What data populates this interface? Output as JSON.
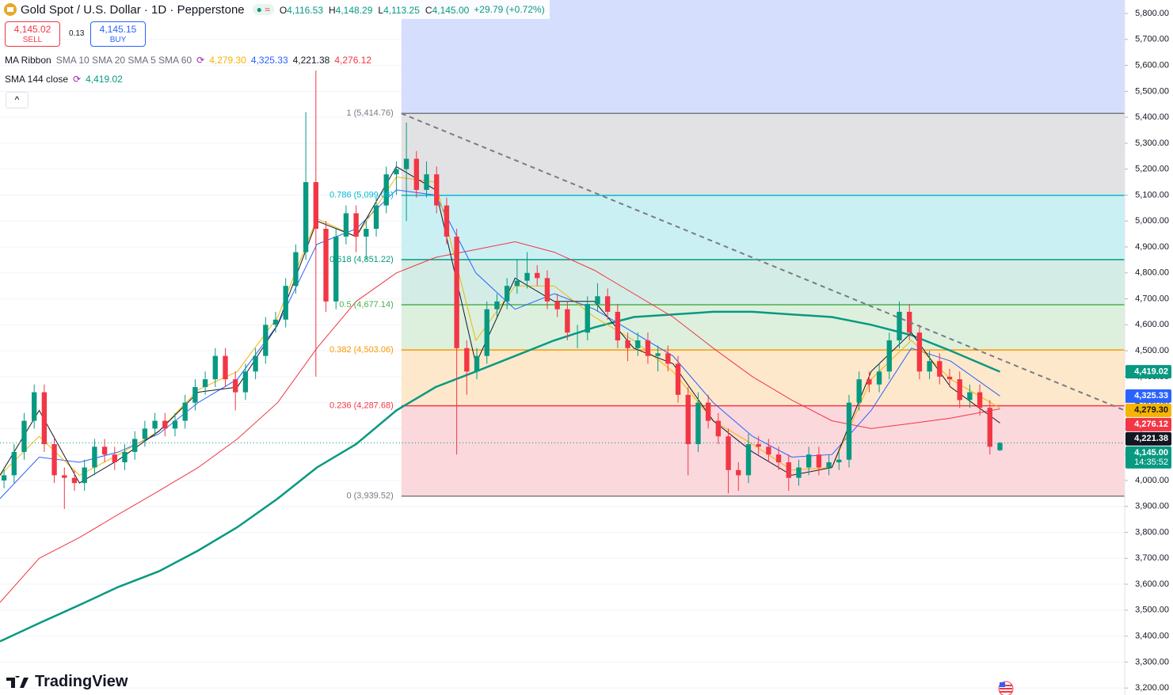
{
  "header": {
    "symbol": "Gold Spot / U.S. Dollar · 1D · Pepperstone",
    "ohlc": [
      {
        "key": "O",
        "value": "4,116.53"
      },
      {
        "key": "H",
        "value": "4,148.29"
      },
      {
        "key": "L",
        "value": "4,113.25"
      },
      {
        "key": "C",
        "value": "4,145.00"
      }
    ],
    "change": "+29.79 (+0.72%)"
  },
  "trade": {
    "sell_price": "4,145.02",
    "sell": "SELL",
    "spread": "0.13",
    "buy_price": "4,145.15",
    "buy": "BUY"
  },
  "indicators": [
    {
      "name": "MA Ribbon",
      "params": "SMA 10 SMA 20 SMA 5 SMA 60"
    },
    {
      "name": "SMA 144 close"
    }
  ],
  "brand": "TradingView",
  "chart_data": {
    "type": "candlestick",
    "xlim": [
      -0.4,
      111.4
    ],
    "ylim": [
      3173,
      5852
    ],
    "yticks": [
      {
        "value": 5800,
        "label": "5,800.00"
      },
      {
        "value": 5700,
        "label": "5,700.00"
      },
      {
        "value": 5600,
        "label": "5,600.00"
      },
      {
        "value": 5500,
        "label": "5,500.00"
      },
      {
        "value": 5400,
        "label": "5,400.00"
      },
      {
        "value": 5300,
        "label": "5,300.00"
      },
      {
        "value": 5200,
        "label": "5,200.00"
      },
      {
        "value": 5100,
        "label": "5,100.00"
      },
      {
        "value": 5000,
        "label": "5,000.00"
      },
      {
        "value": 4900,
        "label": "4,900.00"
      },
      {
        "value": 4800,
        "label": "4,800.00"
      },
      {
        "value": 4700,
        "label": "4,700.00"
      },
      {
        "value": 4600,
        "label": "4,600.00"
      },
      {
        "value": 4500,
        "label": "4,500.00"
      },
      {
        "value": 4400,
        "label": "4,400.00"
      },
      {
        "value": 4300,
        "label": "4,300.00"
      },
      {
        "value": 4200,
        "label": "4,200.00"
      },
      {
        "value": 4100,
        "label": "4,100.00"
      },
      {
        "value": 4000,
        "label": "4,000.00"
      },
      {
        "value": 3900,
        "label": "3,900.00"
      },
      {
        "value": 3800,
        "label": "3,800.00"
      },
      {
        "value": 3700,
        "label": "3,700.00"
      },
      {
        "value": 3600,
        "label": "3,600.00"
      },
      {
        "value": 3500,
        "label": "3,500.00"
      },
      {
        "value": 3400,
        "label": "3,400.00"
      },
      {
        "value": 3300,
        "label": "3,300.00"
      },
      {
        "value": 3200,
        "label": "3,200.00"
      }
    ],
    "grid": true,
    "up_color": "#089981",
    "down_color": "#f23645",
    "candles": [
      [
        4000,
        4050,
        3970,
        4020
      ],
      [
        4020,
        4140,
        3990,
        4110
      ],
      [
        4110,
        4260,
        4080,
        4230
      ],
      [
        4230,
        4370,
        4200,
        4340
      ],
      [
        4340,
        4370,
        4110,
        4140
      ],
      [
        4140,
        4170,
        3990,
        4020
      ],
      [
        4020,
        4050,
        3890,
        4010
      ],
      [
        4010,
        4040,
        3960,
        3990
      ],
      [
        3990,
        4080,
        3960,
        4050
      ],
      [
        4050,
        4160,
        4020,
        4130
      ],
      [
        4130,
        4160,
        4070,
        4100
      ],
      [
        4100,
        4130,
        4040,
        4070
      ],
      [
        4070,
        4140,
        4040,
        4110
      ],
      [
        4110,
        4190,
        4080,
        4160
      ],
      [
        4160,
        4230,
        4130,
        4200
      ],
      [
        4200,
        4260,
        4170,
        4230
      ],
      [
        4230,
        4260,
        4170,
        4200
      ],
      [
        4200,
        4260,
        4170,
        4230
      ],
      [
        4230,
        4330,
        4200,
        4300
      ],
      [
        4300,
        4390,
        4270,
        4360
      ],
      [
        4360,
        4420,
        4330,
        4390
      ],
      [
        4390,
        4510,
        4360,
        4480
      ],
      [
        4480,
        4510,
        4360,
        4390
      ],
      [
        4390,
        4420,
        4270,
        4340
      ],
      [
        4340,
        4450,
        4310,
        4420
      ],
      [
        4420,
        4510,
        4390,
        4480
      ],
      [
        4480,
        4630,
        4450,
        4600
      ],
      [
        4600,
        4650,
        4570,
        4620
      ],
      [
        4620,
        4780,
        4590,
        4750
      ],
      [
        4750,
        4910,
        4720,
        4880
      ],
      [
        4880,
        5420,
        4850,
        5150
      ],
      [
        5150,
        5580,
        4400,
        4970
      ],
      [
        4970,
        5000,
        4650,
        4690
      ],
      [
        4690,
        4970,
        4660,
        4940
      ],
      [
        4940,
        5060,
        4910,
        5030
      ],
      [
        5030,
        5060,
        4880,
        4940
      ],
      [
        4940,
        5000,
        4850,
        4970
      ],
      [
        4970,
        5090,
        4940,
        5060
      ],
      [
        5060,
        5210,
        5030,
        5180
      ],
      [
        5180,
        5230,
        5100,
        5200
      ],
      [
        5200,
        5380,
        5000,
        5240
      ],
      [
        5240,
        5270,
        5090,
        5120
      ],
      [
        5120,
        5230,
        5090,
        5180
      ],
      [
        5180,
        5210,
        5030,
        5060
      ],
      [
        5060,
        5090,
        4910,
        4940
      ],
      [
        4940,
        4970,
        4100,
        4510
      ],
      [
        4510,
        4540,
        4330,
        4420
      ],
      [
        4420,
        4510,
        4390,
        4480
      ],
      [
        4480,
        4690,
        4450,
        4660
      ],
      [
        4660,
        4720,
        4630,
        4690
      ],
      [
        4690,
        4780,
        4660,
        4750
      ],
      [
        4750,
        4850,
        4720,
        4770
      ],
      [
        4770,
        4880,
        4740,
        4800
      ],
      [
        4800,
        4830,
        4750,
        4780
      ],
      [
        4780,
        4810,
        4660,
        4690
      ],
      [
        4690,
        4720,
        4630,
        4660
      ],
      [
        4660,
        4690,
        4540,
        4570
      ],
      [
        4570,
        4600,
        4510,
        4570
      ],
      [
        4570,
        4710,
        4540,
        4680
      ],
      [
        4680,
        4760,
        4650,
        4710
      ],
      [
        4710,
        4740,
        4620,
        4650
      ],
      [
        4650,
        4680,
        4510,
        4540
      ],
      [
        4540,
        4570,
        4460,
        4510
      ],
      [
        4510,
        4570,
        4480,
        4540
      ],
      [
        4540,
        4570,
        4450,
        4480
      ],
      [
        4480,
        4520,
        4420,
        4490
      ],
      [
        4490,
        4520,
        4420,
        4450
      ],
      [
        4450,
        4480,
        4300,
        4330
      ],
      [
        4330,
        4360,
        4020,
        4140
      ],
      [
        4140,
        4340,
        4110,
        4300
      ],
      [
        4300,
        4330,
        4200,
        4230
      ],
      [
        4230,
        4260,
        4140,
        4170
      ],
      [
        4170,
        4200,
        3950,
        4040
      ],
      [
        4040,
        4070,
        3960,
        4020
      ],
      [
        4020,
        4180,
        3990,
        4140
      ],
      [
        4140,
        4170,
        4100,
        4130
      ],
      [
        4130,
        4160,
        4070,
        4100
      ],
      [
        4100,
        4130,
        4040,
        4070
      ],
      [
        4070,
        4100,
        3960,
        4010
      ],
      [
        4010,
        4080,
        3980,
        4050
      ],
      [
        4050,
        4130,
        4020,
        4100
      ],
      [
        4100,
        4130,
        4020,
        4050
      ],
      [
        4050,
        4100,
        4020,
        4070
      ],
      [
        4070,
        4110,
        4040,
        4080
      ],
      [
        4080,
        4330,
        4050,
        4300
      ],
      [
        4300,
        4420,
        4270,
        4390
      ],
      [
        4390,
        4420,
        4340,
        4370
      ],
      [
        4370,
        4450,
        4340,
        4420
      ],
      [
        4420,
        4570,
        4390,
        4540
      ],
      [
        4540,
        4690,
        4510,
        4650
      ],
      [
        4650,
        4680,
        4540,
        4570
      ],
      [
        4570,
        4600,
        4390,
        4420
      ],
      [
        4420,
        4500,
        4390,
        4460
      ],
      [
        4460,
        4490,
        4370,
        4400
      ],
      [
        4400,
        4430,
        4360,
        4390
      ],
      [
        4390,
        4420,
        4280,
        4310
      ],
      [
        4310,
        4370,
        4280,
        4340
      ],
      [
        4340,
        4370,
        4250,
        4280
      ],
      [
        4280,
        4310,
        4100,
        4130
      ],
      [
        4116.53,
        4148.29,
        4113.25,
        4145
      ]
    ],
    "ma_x": [
      -0.4,
      3.5,
      7.5,
      11.4,
      15.4,
      19.3,
      23.2,
      27.2,
      31.1,
      35,
      39,
      42.9,
      46.9,
      50.8,
      54.7,
      58.7,
      62.6,
      66.5,
      70.5,
      74.4,
      78.3,
      82.3,
      86.2,
      90.2,
      94.1,
      99
    ],
    "series": [
      {
        "color": "#089981",
        "width": 2.5,
        "values": [
          3380,
          3450,
          3520,
          3590,
          3650,
          3730,
          3820,
          3930,
          4050,
          4140,
          4270,
          4360,
          4420,
          4480,
          4540,
          4590,
          4630,
          4640,
          4650,
          4650,
          4640,
          4630,
          4600,
          4560,
          4500,
          4419.02
        ],
        "badge": {
          "value": 4419.02,
          "label": "4,419.02"
        }
      },
      {
        "color": "#f23645",
        "width": 1,
        "values": [
          3530,
          3700,
          3780,
          3870,
          3960,
          4050,
          4160,
          4300,
          4510,
          4690,
          4800,
          4860,
          4890,
          4920,
          4880,
          4810,
          4720,
          4630,
          4510,
          4400,
          4310,
          4230,
          4200,
          4220,
          4240,
          4276.12
        ],
        "badge": {
          "value": 4276.12,
          "label": "4,276.12"
        }
      },
      {
        "color": "#2962ff",
        "width": 1,
        "values": [
          3930,
          4090,
          4070,
          4110,
          4180,
          4300,
          4390,
          4600,
          4910,
          4970,
          5120,
          5100,
          4800,
          4660,
          4720,
          4660,
          4570,
          4480,
          4300,
          4170,
          4090,
          4100,
          4270,
          4510,
          4460,
          4325.33
        ],
        "badge": {
          "value": 4325.33,
          "label": "4,325.33"
        }
      },
      {
        "color": "#f5b400",
        "width": 1,
        "values": [
          4020,
          4170,
          4020,
          4100,
          4190,
          4350,
          4420,
          4630,
          5010,
          4940,
          5170,
          5150,
          4540,
          4750,
          4750,
          4630,
          4540,
          4420,
          4230,
          4140,
          4040,
          4050,
          4390,
          4540,
          4390,
          4279.3
        ],
        "badge": {
          "value": 4279.3,
          "label": "4,279.30"
        }
      },
      {
        "color": "#131722",
        "width": 1,
        "values": [
          4020,
          4270,
          3990,
          4080,
          4190,
          4340,
          4360,
          4600,
          5000,
          4940,
          5210,
          5120,
          4450,
          4780,
          4690,
          4690,
          4510,
          4450,
          4230,
          4110,
          4020,
          4050,
          4420,
          4570,
          4360,
          4221.38
        ],
        "badge": {
          "value": 4221.38,
          "label": "4,221.38"
        }
      }
    ],
    "fib_x": [
      39.5,
      111.4
    ],
    "fib_top_fill": "#d5defd",
    "fib_levels": [
      {
        "value": 5414.76,
        "label": "1 (5,414.76)",
        "color": "#787b86",
        "fill": "#e2e2e4"
      },
      {
        "value": 5099.06,
        "label": "0.786 (5,099.06)",
        "color": "#00bcd4",
        "fill": "#cbf0f3"
      },
      {
        "value": 4851.22,
        "label": "0.618 (4,851.22)",
        "color": "#089981",
        "fill": "#d3ede6"
      },
      {
        "value": 4677.14,
        "label": "0.5 (4,677.14)",
        "color": "#4caf50",
        "fill": "#dcf0dd"
      },
      {
        "value": 4503.06,
        "label": "0.382 (4,503.06)",
        "color": "#ff9800",
        "fill": "#fde8cc"
      },
      {
        "value": 4287.68,
        "label": "0.236 (4,287.68)",
        "color": "#f23645",
        "fill": "#fbd8dc"
      },
      {
        "value": 3939.52,
        "label": "0 (3,939.52)",
        "color": "#787b86"
      }
    ],
    "trendline": {
      "x": [
        39.5,
        111.4
      ],
      "values": [
        5414.76,
        4270
      ]
    },
    "price_badge": {
      "value": 4145,
      "label": "4,145.00",
      "countdown": "14:35:52",
      "color": "#089981"
    }
  }
}
